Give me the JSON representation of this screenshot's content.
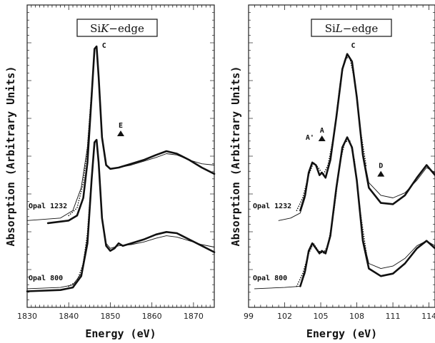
{
  "chart_data": [
    {
      "type": "line",
      "title": "SiK-edge",
      "title_parts": [
        "Si",
        "K",
        "−edge"
      ],
      "xlabel": "Energy (eV)",
      "ylabel": "Absorption (Arbitrary Units)",
      "xlim": [
        1830,
        1875
      ],
      "ylim": [
        0,
        1
      ],
      "x_ticks": [
        "1830",
        "1840",
        "1850",
        "1860",
        "1870"
      ],
      "y_ticks_labeled": false,
      "curves": [
        {
          "label": "Opal 1232",
          "style": "thick",
          "points": [
            [
              1835,
              0.28
            ],
            [
              1840,
              0.29
            ],
            [
              1842,
              0.31
            ],
            [
              1843.5,
              0.38
            ],
            [
              1844.5,
              0.52
            ],
            [
              1845.5,
              0.78
            ],
            [
              1846.2,
              0.97
            ],
            [
              1846.7,
              0.98
            ],
            [
              1847.2,
              0.86
            ],
            [
              1848,
              0.62
            ],
            [
              1849,
              0.51
            ],
            [
              1850,
              0.495
            ],
            [
              1852,
              0.5
            ],
            [
              1855,
              0.515
            ],
            [
              1858,
              0.53
            ],
            [
              1861,
              0.55
            ],
            [
              1863.5,
              0.565
            ],
            [
              1866,
              0.555
            ],
            [
              1869,
              0.53
            ],
            [
              1872,
              0.5
            ],
            [
              1875,
              0.475
            ]
          ]
        },
        {
          "label": "Opal 1232",
          "style": "thin",
          "points": [
            [
              1830,
              0.29
            ],
            [
              1838,
              0.3
            ],
            [
              1841,
              0.33
            ],
            [
              1843,
              0.42
            ],
            [
              1844.5,
              0.58
            ],
            [
              1845.5,
              0.8
            ],
            [
              1846.2,
              0.97
            ],
            [
              1846.7,
              0.98
            ],
            [
              1847.2,
              0.86
            ],
            [
              1848,
              0.62
            ],
            [
              1849,
              0.51
            ],
            [
              1850,
              0.495
            ],
            [
              1852,
              0.5
            ],
            [
              1855,
              0.51
            ],
            [
              1858,
              0.525
            ],
            [
              1861,
              0.54
            ],
            [
              1863.5,
              0.555
            ],
            [
              1866,
              0.55
            ],
            [
              1869,
              0.53
            ],
            [
              1872,
              0.515
            ],
            [
              1875,
              0.51
            ]
          ]
        },
        {
          "label": "Opal 1232",
          "style": "dotted",
          "points": [
            [
              1840,
              0.31
            ],
            [
              1842,
              0.34
            ],
            [
              1843.5,
              0.44
            ],
            [
              1844.5,
              0.58
            ],
            [
              1845.5,
              0.8
            ],
            [
              1846.2,
              0.97
            ],
            [
              1846.7,
              0.98
            ],
            [
              1847.2,
              0.86
            ],
            [
              1848,
              0.63
            ]
          ]
        },
        {
          "label": "Opal 800",
          "style": "thick",
          "points": [
            [
              1830,
              0.01
            ],
            [
              1838,
              0.015
            ],
            [
              1841,
              0.025
            ],
            [
              1843,
              0.07
            ],
            [
              1844.5,
              0.2
            ],
            [
              1845.5,
              0.45
            ],
            [
              1846.2,
              0.6
            ],
            [
              1846.7,
              0.61
            ],
            [
              1847.2,
              0.52
            ],
            [
              1848,
              0.3
            ],
            [
              1849,
              0.19
            ],
            [
              1850,
              0.17
            ],
            [
              1851,
              0.18
            ],
            [
              1852,
              0.2
            ],
            [
              1853,
              0.19
            ],
            [
              1855,
              0.2
            ],
            [
              1858,
              0.215
            ],
            [
              1861,
              0.235
            ],
            [
              1863.5,
              0.245
            ],
            [
              1866,
              0.24
            ],
            [
              1869,
              0.215
            ],
            [
              1872,
              0.19
            ],
            [
              1875,
              0.165
            ]
          ]
        },
        {
          "label": "Opal 800",
          "style": "thin",
          "points": [
            [
              1830,
              0.02
            ],
            [
              1838,
              0.025
            ],
            [
              1841,
              0.035
            ],
            [
              1843,
              0.08
            ],
            [
              1844.5,
              0.22
            ],
            [
              1845.5,
              0.46
            ],
            [
              1846.2,
              0.6
            ],
            [
              1846.7,
              0.61
            ],
            [
              1847.2,
              0.52
            ],
            [
              1848,
              0.3
            ],
            [
              1849,
              0.2
            ],
            [
              1850,
              0.18
            ],
            [
              1852,
              0.19
            ],
            [
              1855,
              0.195
            ],
            [
              1858,
              0.205
            ],
            [
              1861,
              0.22
            ],
            [
              1863.5,
              0.23
            ],
            [
              1866,
              0.225
            ],
            [
              1869,
              0.21
            ],
            [
              1872,
              0.195
            ],
            [
              1875,
              0.185
            ]
          ]
        },
        {
          "label": "Opal 800",
          "style": "dotted",
          "points": [
            [
              1840,
              0.03
            ],
            [
              1842,
              0.05
            ],
            [
              1843.5,
              0.12
            ],
            [
              1844.5,
              0.24
            ],
            [
              1845.5,
              0.46
            ],
            [
              1846.2,
              0.6
            ],
            [
              1846.7,
              0.61
            ],
            [
              1847.2,
              0.52
            ],
            [
              1848,
              0.31
            ]
          ]
        }
      ],
      "sample_labels": [
        {
          "text": "Opal 1232",
          "y": 0.33
        },
        {
          "text": "Opal 800",
          "y": 0.045
        }
      ],
      "peak_labels": [
        {
          "text": "C",
          "x": 1848.5,
          "y": 0.975,
          "marker": false
        },
        {
          "text": "E",
          "x": 1852.5,
          "y": 0.63,
          "marker": true
        }
      ]
    },
    {
      "type": "line",
      "title": "SiL-edge",
      "title_parts": [
        "Si",
        "L",
        "−edge"
      ],
      "xlabel": "Energy (eV)",
      "ylabel": "Absorption (Arbitrary Units)",
      "xlim": [
        99,
        114.5
      ],
      "ylim": [
        0,
        1
      ],
      "x_ticks": [
        "99",
        "102",
        "105",
        "108",
        "111",
        "114"
      ],
      "y_ticks_labeled": false,
      "curves": [
        {
          "label": "Opal 1232",
          "style": "thin",
          "points": [
            [
              101.5,
              0.29
            ],
            [
              102.5,
              0.3
            ],
            [
              103.3,
              0.32
            ],
            [
              103.7,
              0.38
            ],
            [
              104.0,
              0.48
            ],
            [
              104.3,
              0.52
            ],
            [
              104.6,
              0.51
            ],
            [
              104.9,
              0.47
            ],
            [
              105.1,
              0.48
            ],
            [
              105.4,
              0.46
            ],
            [
              105.8,
              0.53
            ],
            [
              106.3,
              0.7
            ],
            [
              106.8,
              0.89
            ],
            [
              107.2,
              0.95
            ],
            [
              107.6,
              0.92
            ],
            [
              108.0,
              0.78
            ],
            [
              108.5,
              0.56
            ],
            [
              109.0,
              0.44
            ],
            [
              110.0,
              0.39
            ],
            [
              111.0,
              0.38
            ],
            [
              112.0,
              0.4
            ],
            [
              113.0,
              0.45
            ],
            [
              113.8,
              0.5
            ],
            [
              114.5,
              0.48
            ]
          ]
        },
        {
          "label": "Opal 1232",
          "style": "thick",
          "points": [
            [
              103.3,
              0.33
            ],
            [
              103.7,
              0.39
            ],
            [
              104.0,
              0.48
            ],
            [
              104.3,
              0.52
            ],
            [
              104.6,
              0.51
            ],
            [
              104.9,
              0.47
            ],
            [
              105.1,
              0.48
            ],
            [
              105.4,
              0.46
            ],
            [
              105.8,
              0.53
            ],
            [
              106.3,
              0.7
            ],
            [
              106.8,
              0.89
            ],
            [
              107.2,
              0.95
            ],
            [
              107.6,
              0.92
            ],
            [
              108.0,
              0.78
            ],
            [
              108.5,
              0.55
            ],
            [
              109.0,
              0.42
            ],
            [
              110.0,
              0.36
            ],
            [
              111.0,
              0.355
            ],
            [
              112.0,
              0.39
            ],
            [
              113.0,
              0.46
            ],
            [
              113.8,
              0.51
            ],
            [
              114.5,
              0.47
            ]
          ]
        },
        {
          "label": "Opal 1232",
          "style": "dotted",
          "points": [
            [
              103.0,
              0.33
            ],
            [
              103.5,
              0.38
            ],
            [
              104.0,
              0.47
            ],
            [
              104.4,
              0.52
            ],
            [
              104.8,
              0.5
            ],
            [
              105.2,
              0.47
            ],
            [
              105.6,
              0.51
            ],
            [
              106.1,
              0.63
            ],
            [
              106.6,
              0.83
            ],
            [
              107.0,
              0.93
            ],
            [
              107.4,
              0.94
            ],
            [
              107.8,
              0.85
            ],
            [
              108.3,
              0.65
            ],
            [
              108.8,
              0.5
            ]
          ]
        },
        {
          "label": "Opal 800",
          "style": "thin",
          "points": [
            [
              99.5,
              0.02
            ],
            [
              102.0,
              0.025
            ],
            [
              103.3,
              0.03
            ],
            [
              103.7,
              0.08
            ],
            [
              104.0,
              0.17
            ],
            [
              104.3,
              0.2
            ],
            [
              104.6,
              0.18
            ],
            [
              104.9,
              0.16
            ],
            [
              105.1,
              0.17
            ],
            [
              105.4,
              0.16
            ],
            [
              105.8,
              0.23
            ],
            [
              106.3,
              0.42
            ],
            [
              106.8,
              0.58
            ],
            [
              107.2,
              0.62
            ],
            [
              107.6,
              0.58
            ],
            [
              108.0,
              0.45
            ],
            [
              108.5,
              0.22
            ],
            [
              109.0,
              0.12
            ],
            [
              110.0,
              0.1
            ],
            [
              111.0,
              0.11
            ],
            [
              112.0,
              0.14
            ],
            [
              113.0,
              0.19
            ],
            [
              113.8,
              0.21
            ],
            [
              114.5,
              0.19
            ]
          ]
        },
        {
          "label": "Opal 800",
          "style": "thick",
          "points": [
            [
              103.3,
              0.03
            ],
            [
              103.7,
              0.09
            ],
            [
              104.0,
              0.17
            ],
            [
              104.3,
              0.2
            ],
            [
              104.6,
              0.18
            ],
            [
              104.9,
              0.16
            ],
            [
              105.1,
              0.17
            ],
            [
              105.4,
              0.16
            ],
            [
              105.8,
              0.23
            ],
            [
              106.3,
              0.42
            ],
            [
              106.8,
              0.58
            ],
            [
              107.2,
              0.62
            ],
            [
              107.6,
              0.58
            ],
            [
              108.0,
              0.45
            ],
            [
              108.5,
              0.21
            ],
            [
              109.0,
              0.1
            ],
            [
              110.0,
              0.07
            ],
            [
              111.0,
              0.08
            ],
            [
              112.0,
              0.12
            ],
            [
              113.0,
              0.18
            ],
            [
              113.8,
              0.21
            ],
            [
              114.5,
              0.18
            ]
          ]
        },
        {
          "label": "Opal 800",
          "style": "dotted",
          "points": [
            [
              103.0,
              0.03
            ],
            [
              103.5,
              0.08
            ],
            [
              104.0,
              0.16
            ],
            [
              104.4,
              0.2
            ],
            [
              104.8,
              0.17
            ],
            [
              105.2,
              0.16
            ],
            [
              105.6,
              0.19
            ],
            [
              106.1,
              0.33
            ],
            [
              106.6,
              0.52
            ],
            [
              107.0,
              0.6
            ],
            [
              107.4,
              0.61
            ],
            [
              107.8,
              0.53
            ],
            [
              108.3,
              0.32
            ],
            [
              108.8,
              0.16
            ]
          ]
        }
      ],
      "sample_labels": [
        {
          "text": "Opal 1232",
          "y": 0.33
        },
        {
          "text": "Opal 800",
          "y": 0.045
        }
      ],
      "peak_labels": [
        {
          "text": "C",
          "x": 107.7,
          "y": 0.975,
          "marker": false
        },
        {
          "text": "A'",
          "x": 104.1,
          "y": 0.61,
          "marker": false
        },
        {
          "text": "A",
          "x": 105.1,
          "y": 0.61,
          "marker": true
        },
        {
          "text": "D",
          "x": 110.0,
          "y": 0.47,
          "marker": true
        }
      ]
    }
  ]
}
